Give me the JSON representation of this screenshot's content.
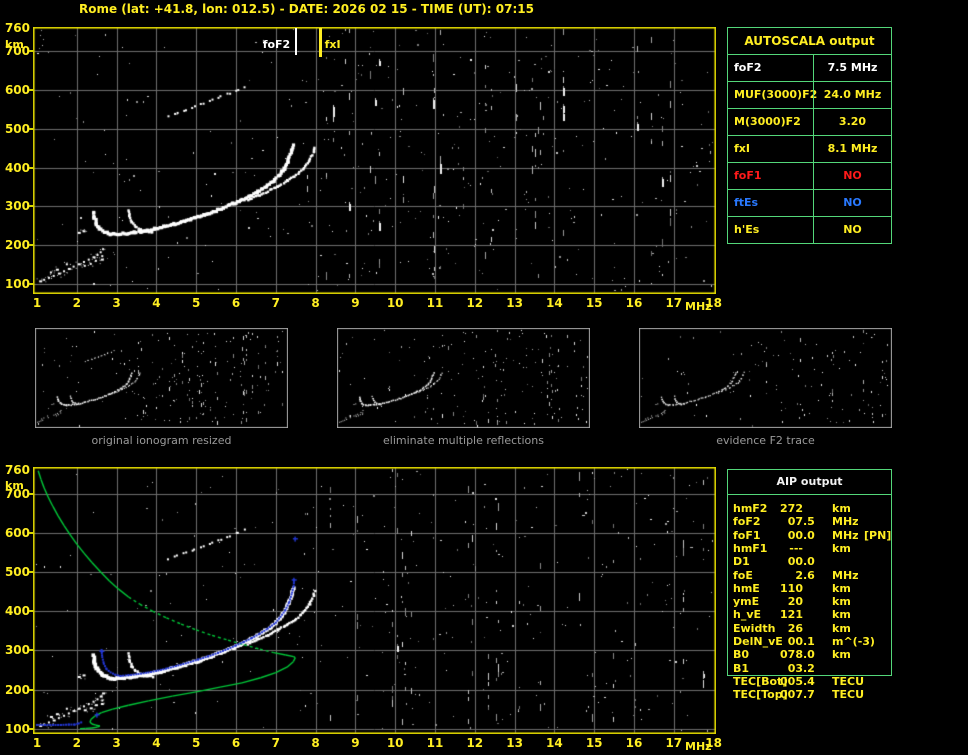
{
  "header": {
    "title": "Rome (lat: +41.8, lon: 012.5) - DATE: 2026 02 15 - TIME (UT): 07:15",
    "station": "Rome",
    "lat": "+41.8",
    "lon": "012.5",
    "date": "2026 02 15",
    "time_ut": "07:15"
  },
  "palette": {
    "yellow": "#ffee22",
    "plot_border": "#e0d800",
    "grid_gray": "#6f6f6f",
    "table_green": "#53d679",
    "red": "#ff1a1a",
    "status_blue": "#2979ff",
    "trace_white": "#ffffff",
    "restored_blue": "#2236d4",
    "profile_green": "#00c838",
    "caption_gray": "#9a9a9a"
  },
  "autoscala_table": {
    "title": "AUTOSCALA output",
    "rows": [
      {
        "label": "foF2",
        "value": "7.5 MHz",
        "color": "#ffffff"
      },
      {
        "label": "MUF(3000)F2",
        "value": "24.0 MHz",
        "color": "#ffee22"
      },
      {
        "label": "M(3000)F2",
        "value": "3.20",
        "color": "#ffee22"
      },
      {
        "label": "fxI",
        "value": "8.1 MHz",
        "color": "#ffee22"
      },
      {
        "label": "foF1",
        "value": "NO",
        "color": "#ff1a1a"
      },
      {
        "label": "ftEs",
        "value": "NO",
        "color": "#2979ff"
      },
      {
        "label": "h'Es",
        "value": "NO",
        "color": "#ffee22"
      }
    ]
  },
  "aip_table": {
    "title": "AIP output",
    "rows": [
      {
        "label": "hmF2",
        "value": "272",
        "unit": "km",
        "extra": ""
      },
      {
        "label": "foF2",
        "value": "07.5",
        "unit": "MHz",
        "extra": ""
      },
      {
        "label": "foF1",
        "value": "00.0",
        "unit": "MHz",
        "extra": "[PN]"
      },
      {
        "label": "hmF1",
        "value": "---",
        "unit": "km",
        "extra": ""
      },
      {
        "label": "D1",
        "value": "00.0",
        "unit": "",
        "extra": ""
      },
      {
        "label": "foE",
        "value": "2.6",
        "unit": "MHz",
        "extra": ""
      },
      {
        "label": "hmE",
        "value": "110",
        "unit": "km",
        "extra": ""
      },
      {
        "label": "ymE",
        "value": "20",
        "unit": "km",
        "extra": ""
      },
      {
        "label": "h_vE",
        "value": "121",
        "unit": "km",
        "extra": ""
      },
      {
        "label": "Ewidth",
        "value": "26",
        "unit": "km",
        "extra": ""
      },
      {
        "label": "DelN_vE",
        "value": "00.1",
        "unit": "m^(-3)",
        "extra": ""
      },
      {
        "label": "B0",
        "value": "078.0",
        "unit": "km",
        "extra": ""
      },
      {
        "label": "B1",
        "value": "03.2",
        "unit": "",
        "extra": ""
      },
      {
        "label": "TEC[Bot]",
        "value": "005.4",
        "unit": "TECU",
        "extra": ""
      },
      {
        "label": "TEC[Top]",
        "value": "007.7",
        "unit": "TECU",
        "extra": ""
      }
    ]
  },
  "thumbnails": [
    {
      "caption": "original ionogram resized"
    },
    {
      "caption": "eliminate multiple reflections"
    },
    {
      "caption": "evidence F2 trace"
    }
  ],
  "chart_data": [
    {
      "id": "ionogram_main",
      "type": "scatter",
      "xlabel": "MHz",
      "ylabel": "km",
      "xlim": [
        1,
        18
      ],
      "ylim": [
        100,
        760
      ],
      "grid": true,
      "x_ticks": [
        1,
        2,
        3,
        4,
        5,
        6,
        7,
        8,
        9,
        10,
        11,
        12,
        13,
        14,
        15,
        16,
        17,
        18
      ],
      "y_ticks": [
        760,
        700,
        600,
        500,
        400,
        300,
        200,
        100
      ],
      "annotations": [
        {
          "label": "foF2",
          "x_mhz": 7.5,
          "color": "#ffffff"
        },
        {
          "label": "fxI",
          "x_mhz": 8.1,
          "color": "#ffee22"
        }
      ],
      "series": [
        {
          "name": "f2_trace_o",
          "color": "#ffffff",
          "points": [
            [
              2.42,
              286
            ],
            [
              2.45,
              270
            ],
            [
              2.5,
              254
            ],
            [
              2.58,
              243
            ],
            [
              2.7,
              234
            ],
            [
              2.85,
              229
            ],
            [
              3.0,
              228
            ],
            [
              3.2,
              230
            ],
            [
              3.45,
              233
            ],
            [
              3.7,
              237
            ],
            [
              3.95,
              242
            ],
            [
              4.2,
              248
            ],
            [
              4.45,
              255
            ],
            [
              4.7,
              262
            ],
            [
              4.95,
              270
            ],
            [
              5.2,
              278
            ],
            [
              5.45,
              287
            ],
            [
              5.7,
              297
            ],
            [
              5.95,
              308
            ],
            [
              6.15,
              317
            ],
            [
              6.35,
              327
            ],
            [
              6.55,
              338
            ],
            [
              6.75,
              351
            ],
            [
              6.95,
              366
            ],
            [
              7.1,
              381
            ],
            [
              7.22,
              398
            ],
            [
              7.32,
              419
            ],
            [
              7.4,
              443
            ],
            [
              7.44,
              458
            ]
          ]
        },
        {
          "name": "f1_cusp",
          "color": "#ffffff",
          "points": [
            [
              3.3,
              291
            ],
            [
              3.33,
              274
            ],
            [
              3.38,
              259
            ],
            [
              3.47,
              248
            ],
            [
              3.6,
              240
            ],
            [
              3.76,
              235
            ],
            [
              3.92,
              232
            ]
          ]
        },
        {
          "name": "f2_trace_x",
          "color": "#ffffff",
          "points": [
            [
              6.3,
              316
            ],
            [
              6.55,
              327
            ],
            [
              6.8,
              339
            ],
            [
              7.05,
              352
            ],
            [
              7.3,
              366
            ],
            [
              7.52,
              381
            ],
            [
              7.7,
              398
            ],
            [
              7.85,
              418
            ],
            [
              7.95,
              440
            ],
            [
              8.0,
              456
            ]
          ]
        },
        {
          "name": "second_hop",
          "color": "#ffffff",
          "style": "dashed",
          "points": [
            [
              4.3,
              533
            ],
            [
              4.52,
              541
            ],
            [
              4.74,
              549
            ],
            [
              4.96,
              557
            ],
            [
              5.18,
              565
            ],
            [
              5.4,
              574
            ],
            [
              5.62,
              583
            ],
            [
              5.84,
              592
            ],
            [
              6.06,
              601
            ],
            [
              6.28,
              610
            ]
          ]
        },
        {
          "name": "e_region",
          "color": "#ffffff",
          "style": "scatter",
          "points": [
            [
              1.08,
              107
            ],
            [
              1.18,
              111
            ],
            [
              1.3,
              116
            ],
            [
              1.42,
              121
            ],
            [
              1.55,
              127
            ],
            [
              1.68,
              133
            ],
            [
              1.8,
              139
            ],
            [
              1.92,
              145
            ],
            [
              2.05,
              151
            ],
            [
              2.18,
              157
            ],
            [
              2.3,
              163
            ],
            [
              2.42,
              169
            ],
            [
              2.52,
              175
            ],
            [
              2.6,
              182
            ],
            [
              2.63,
              163
            ],
            [
              2.64,
              172
            ],
            [
              2.66,
              190
            ],
            [
              2.2,
              147
            ],
            [
              1.5,
              137
            ],
            [
              1.75,
              151
            ],
            [
              1.35,
              130
            ],
            [
              2.35,
              152
            ],
            [
              2.48,
              160
            ],
            [
              2.05,
              232
            ],
            [
              2.17,
              236
            ]
          ]
        }
      ]
    },
    {
      "id": "ionogram_restored",
      "type": "scatter",
      "xlabel": "MHz",
      "ylabel": "km",
      "xlim": [
        1,
        18
      ],
      "ylim": [
        100,
        760
      ],
      "grid": true,
      "x_ticks": [
        1,
        2,
        3,
        4,
        5,
        6,
        7,
        8,
        9,
        10,
        11,
        12,
        13,
        14,
        15,
        16,
        17,
        18
      ],
      "y_ticks": [
        760,
        700,
        600,
        500,
        400,
        300,
        200,
        100
      ],
      "includes_series_from": "ionogram_main",
      "series": [
        {
          "name": "density_profile",
          "color": "#00c838",
          "points": [
            [
              1.03,
              758
            ],
            [
              1.1,
              736
            ],
            [
              1.18,
              714
            ],
            [
              1.28,
              691
            ],
            [
              1.4,
              667
            ],
            [
              1.53,
              643
            ],
            [
              1.68,
              618
            ],
            [
              1.84,
              594
            ],
            [
              2.0,
              571
            ],
            [
              2.18,
              548
            ],
            [
              2.38,
              524
            ],
            [
              2.6,
              500
            ],
            [
              2.82,
              477
            ],
            [
              3.05,
              456
            ],
            [
              3.3,
              436
            ],
            [
              3.58,
              418
            ],
            [
              3.9,
              400
            ],
            [
              4.25,
              383
            ],
            [
              4.62,
              367
            ],
            [
              5.0,
              352
            ],
            [
              5.4,
              338
            ],
            [
              5.8,
              326
            ],
            [
              6.2,
              314
            ],
            [
              6.6,
              303
            ],
            [
              6.95,
              294
            ],
            [
              7.25,
              288
            ],
            [
              7.45,
              284
            ],
            [
              7.49,
              281
            ],
            [
              7.44,
              271
            ],
            [
              7.28,
              257
            ],
            [
              7.0,
              243
            ],
            [
              6.62,
              230
            ],
            [
              6.15,
              217
            ],
            [
              5.6,
              206
            ],
            [
              5.0,
              194
            ],
            [
              4.4,
              183
            ],
            [
              3.8,
              171
            ],
            [
              3.3,
              160
            ],
            [
              2.9,
              150
            ],
            [
              2.62,
              141
            ],
            [
              2.45,
              132
            ],
            [
              2.36,
              124
            ],
            [
              2.33,
              117
            ],
            [
              2.38,
              112
            ],
            [
              2.48,
              109
            ],
            [
              2.58,
              107
            ],
            [
              2.52,
              104
            ],
            [
              2.38,
              102
            ],
            [
              2.22,
              101
            ],
            [
              2.08,
              100
            ]
          ]
        },
        {
          "name": "restored_e_trace",
          "color": "#2236d4",
          "points": [
            [
              1.0,
              107
            ],
            [
              1.2,
              107
            ],
            [
              1.4,
              107
            ],
            [
              1.6,
              107
            ],
            [
              1.8,
              108
            ],
            [
              1.95,
              108
            ],
            [
              2.05,
              111
            ],
            [
              2.12,
              114
            ]
          ]
        },
        {
          "name": "restored_f_trace",
          "color": "#2236d4",
          "points": [
            [
              2.62,
              298
            ],
            [
              2.64,
              280
            ],
            [
              2.68,
              263
            ],
            [
              2.75,
              249
            ],
            [
              2.85,
              241
            ],
            [
              2.97,
              235
            ],
            [
              3.1,
              232
            ],
            [
              3.3,
              234
            ],
            [
              3.55,
              237
            ],
            [
              3.8,
              241
            ],
            [
              4.05,
              246
            ],
            [
              4.3,
              252
            ],
            [
              4.55,
              259
            ],
            [
              4.8,
              266
            ],
            [
              5.05,
              274
            ],
            [
              5.3,
              282
            ],
            [
              5.55,
              291
            ],
            [
              5.8,
              301
            ],
            [
              6.0,
              310
            ],
            [
              6.2,
              319
            ],
            [
              6.4,
              329
            ],
            [
              6.6,
              340
            ],
            [
              6.8,
              353
            ],
            [
              7.0,
              368
            ],
            [
              7.12,
              383
            ],
            [
              7.24,
              400
            ],
            [
              7.34,
              421
            ],
            [
              7.41,
              445
            ],
            [
              7.45,
              462
            ],
            [
              7.46,
              478
            ]
          ]
        },
        {
          "name": "restored_markers",
          "color": "#2236d4",
          "style": "cross",
          "points": [
            [
              2.5,
              136
            ],
            [
              2.62,
              298
            ],
            [
              7.45,
              480
            ],
            [
              7.48,
              585
            ]
          ]
        }
      ]
    }
  ]
}
